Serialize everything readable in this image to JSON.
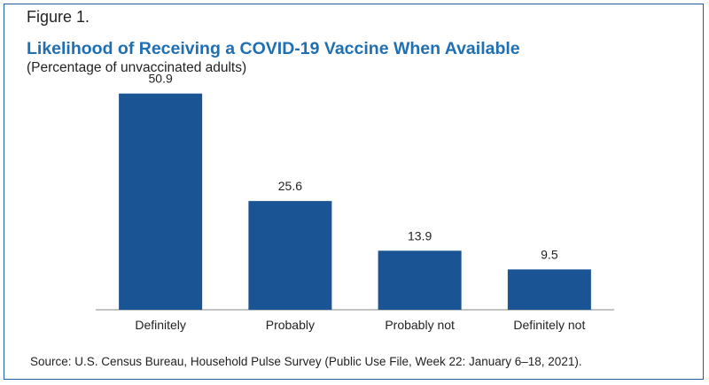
{
  "figure_label": "Figure 1.",
  "chart_data": {
    "type": "bar",
    "title": "Likelihood of Receiving a COVID-19 Vaccine When Available",
    "subtitle": "(Percentage of unvaccinated adults)",
    "categories": [
      "Definitely",
      "Probably",
      "Probably not",
      "Definitely not"
    ],
    "values": [
      50.9,
      25.6,
      13.9,
      9.5
    ],
    "value_labels": [
      "50.9",
      "25.6",
      "13.9",
      "9.5"
    ],
    "xlabel": "",
    "ylabel": "",
    "ylim": [
      0,
      60
    ],
    "grid": false,
    "legend": "none",
    "bar_color": "#1a5494",
    "title_color": "#1f6fb2"
  },
  "source": "Source: U.S. Census Bureau, Household Pulse Survey (Public Use File, Week 22: January 6–18, 2021)."
}
